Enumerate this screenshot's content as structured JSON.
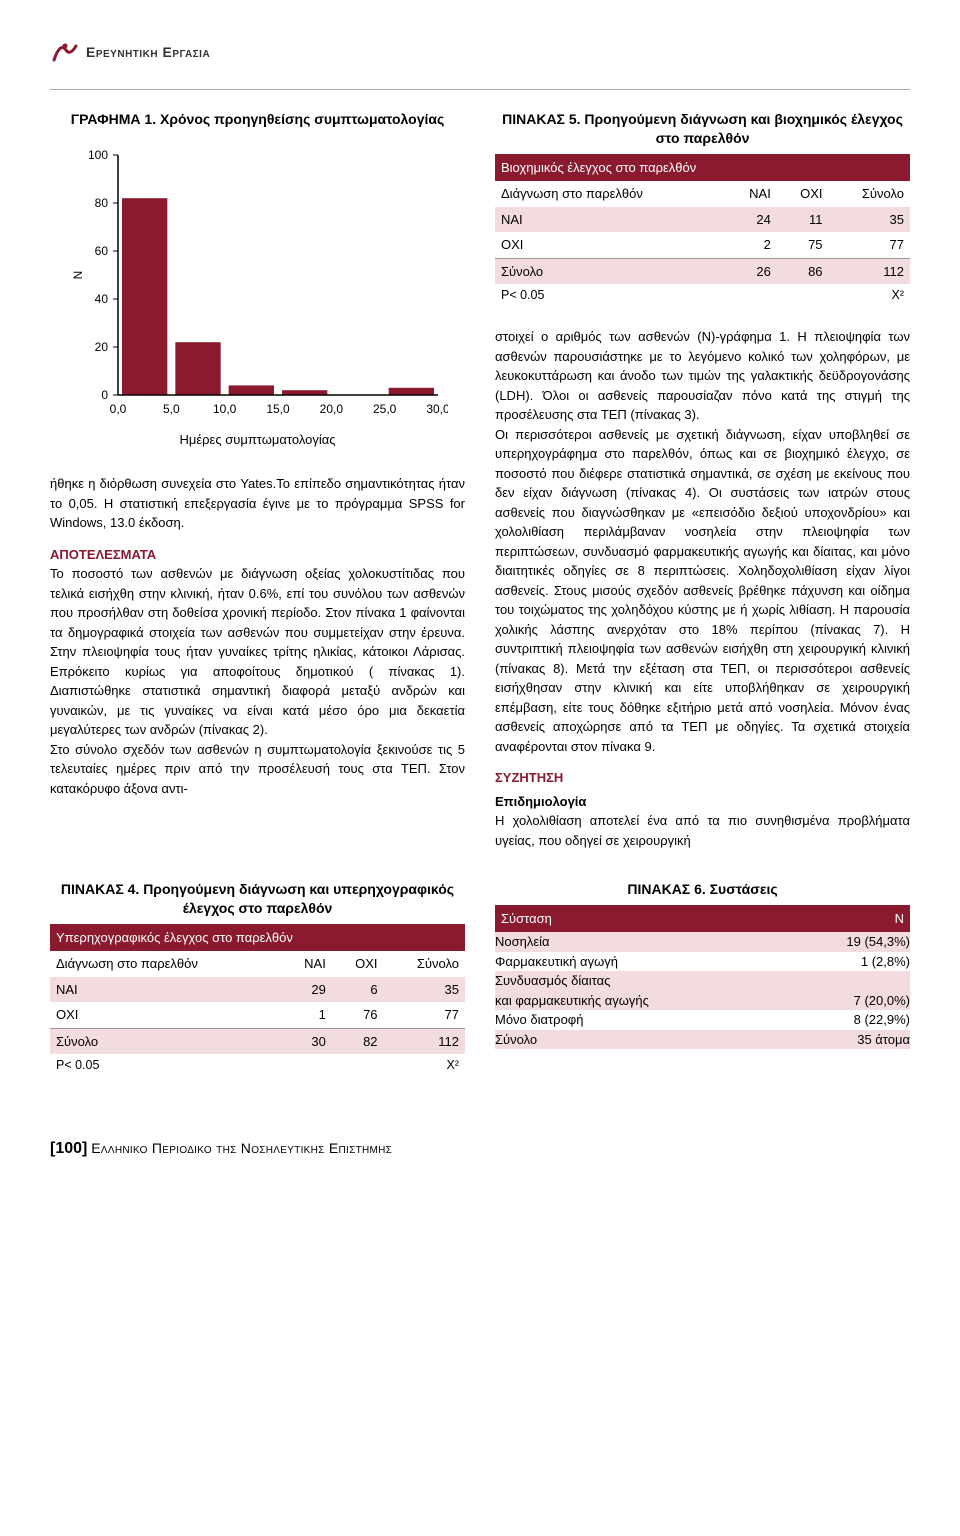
{
  "header": {
    "section_label": "Ερευνητικη Εργασια",
    "logo_color": "#8b1a2f"
  },
  "chart": {
    "title": "ΓΡΑΦΗΜΑ 1. Χρόνος προηγηθείσης συμπτωματολογίας",
    "type": "bar",
    "x_ticks": [
      "0,0",
      "5,0",
      "10,0",
      "15,0",
      "20,0",
      "25,0",
      "30,0"
    ],
    "y_ticks": [
      0,
      20,
      40,
      60,
      80,
      100
    ],
    "values": [
      82,
      22,
      4,
      2,
      0,
      3
    ],
    "bar_color": "#8b1a2f",
    "axis_color": "#000000",
    "background": "#ffffff",
    "ylim": [
      0,
      100
    ],
    "ylabel": "N",
    "xlabel": "Ημέρες συμπτωματολογίας",
    "bar_width": 0.85,
    "font_size": 12
  },
  "left_text": {
    "p1": "ήθηκε η διόρθωση συνεχεία στο Yates.Το επίπεδο σημαντικότητας ήταν το 0,05. Η στατιστική επεξεργασία έγινε με το πρόγραμμα SPSS for Windows, 13.0 έκδοση.",
    "h1": "ΑΠΟΤΕΛΕΣΜΑΤΑ",
    "p2": "Το ποσοστό των ασθενών με διάγνωση οξείας χολοκυστίτιδας που τελικά εισήχθη στην κλινική, ήταν 0.6%, επί του συνόλου των ασθενών που προσήλθαν στη δοθείσα χρονική περίοδο. Στον πίνακα 1 φαίνονται τα δημογραφικά στοιχεία των ασθενών που συμμετείχαν στην έρευνα. Στην πλειοψηφία τους ήταν γυναίκες τρίτης ηλικίας, κάτοικοι Λάρισας. Επρόκειτο κυρίως για αποφοίτους δημοτικού ( πίνακας 1). Διαπιστώθηκε στατιστικά σημαντική διαφορά μεταξύ ανδρών και γυναικών, με τις γυναίκες να είναι κατά μέσο όρο μια δεκαετία μεγαλύτερες των ανδρών (πίνακας 2).",
    "p3": "Στο σύνολο σχεδόν των ασθενών η συμπτωματολογία ξεκινούσε τις 5 τελευταίες ημέρες πριν από την προσέλευσή τους στα ΤΕΠ. Στον κατακόρυφο άξονα αντι-"
  },
  "table5": {
    "title": "ΠΙΝΑΚΑΣ 5. Προηγούμενη διάγνωση και βιοχημικός έλεγχος στο παρελθόν",
    "header": "Βιοχημικός έλεγχος στο παρελθόν",
    "cols": [
      "Διάγνωση στο παρελθόν",
      "ΝΑΙ",
      "ΟΧΙ",
      "Σύνολο"
    ],
    "rows": [
      [
        "ΝΑΙ",
        "24",
        "11",
        "35"
      ],
      [
        "ΟΧΙ",
        "2",
        "75",
        "77"
      ]
    ],
    "sum": [
      "Σύνολο",
      "26",
      "86",
      "112"
    ],
    "pnote": "P< 0.05",
    "chi": "X²",
    "row_light_bg": "#f3dce0",
    "header_bg": "#8b1a2f"
  },
  "right_text": {
    "p1": "στοιχεί ο αριθμός των ασθενών (Ν)-γράφημα 1. Η πλειοψηφία των ασθενών παρουσιάστηκε με το λεγόμενο κολικό των χοληφόρων, με λευκοκυττάρωση και άνοδο των τιμών της γαλακτικής δεϋδρογονάσης (LDH). Όλοι οι ασθενείς παρουσίαζαν πόνο κατά της στιγμή της προσέλευσης στα ΤΕΠ (πίνακας 3).",
    "p2": "Οι περισσότεροι ασθενείς με σχετική διάγνωση, είχαν υποβληθεί σε υπερηχογράφημα στο παρελθόν, όπως και σε βιοχημικό έλεγχο, σε ποσοστό που διέφερε στατιστικά σημαντικά, σε σχέση με εκείνους που δεν είχαν διάγνωση (πίνακας 4). Οι συστάσεις των ιατρών στους ασθενείς που διαγνώσθηκαν με «επεισόδιο δεξιού υποχονδρίου» και χολολιθίαση περιλάμβαναν νοσηλεία στην πλειοψηφία των περιπτώσεων, συνδυασμό φαρμακευτικής αγωγής και δίαιτας, και μόνο διαιτητικές οδηγίες σε 8 περιπτώσεις. Χοληδοχολιθίαση είχαν λίγοι ασθενείς. Στους μισούς σχεδόν ασθενείς βρέθηκε πάχυνση και οίδημα του τοιχώματος της χοληδόχου κύστης με ή χωρίς λιθίαση. Η παρουσία χολικής λάσπης ανερχόταν στο 18% περίπου (πίνακας 7). Η συντριπτική πλειοψηφία των ασθενών εισήχθη στη χειρουργική κλινική (πίνακας 8). Μετά την εξέταση στα ΤΕΠ, οι περισσότεροι ασθενείς εισήχθησαν στην κλινική και είτε υποβλήθηκαν σε χειρουργική επέμβαση, είτε τους δόθηκε εξιτήριο μετά από νοσηλεία. Μόνον ένας ασθενείς αποχώρησε από τα ΤΕΠ με οδηγίες. Τα σχετικά στοιχεία αναφέρονται στον πίνακα 9.",
    "h1": "ΣΥΖΗΤΗΣΗ",
    "h2": "Επιδημιολογία",
    "p3": "Η χολολιθίαση αποτελεί ένα από τα πιο συνηθισμένα προβλήματα υγείας, που οδηγεί σε χειρουργική"
  },
  "table4": {
    "title": "ΠΙΝΑΚΑΣ 4. Προηγούμενη διάγνωση και υπερηχογραφικός έλεγχος στο παρελθόν",
    "header": "Υπερηχογραφικός έλεγχος στο παρελθόν",
    "cols": [
      "Διάγνωση στο παρελθόν",
      "ΝΑΙ",
      "ΟΧΙ",
      "Σύνολο"
    ],
    "rows": [
      [
        "ΝΑΙ",
        "29",
        "6",
        "35"
      ],
      [
        "ΟΧΙ",
        "1",
        "76",
        "77"
      ]
    ],
    "sum": [
      "Σύνολο",
      "30",
      "82",
      "112"
    ],
    "pnote": "P< 0.05",
    "chi": "X²"
  },
  "table6": {
    "title": "ΠΙΝΑΚΑΣ 6. Συστάσεις",
    "header_cols": [
      "Σύσταση",
      "Ν"
    ],
    "rows": [
      {
        "l": "Νοσηλεία",
        "r": "19 (54,3%)",
        "bg": "light"
      },
      {
        "l": "Φαρμακευτική αγωγή",
        "r": "1 (2,8%)",
        "bg": "plain"
      },
      {
        "l": "Συνδυασμός δίαιτας",
        "r": "",
        "bg": "light"
      },
      {
        "l": "και φαρμακευτικής αγωγής",
        "r": "7 (20,0%)",
        "bg": "light"
      },
      {
        "l": "Μόνο διατροφή",
        "r": "8 (22,9%)",
        "bg": "plain"
      },
      {
        "l": "Σύνολο",
        "r": "35 άτομα",
        "bg": "light"
      }
    ]
  },
  "footer": {
    "page": "[100]",
    "journal": "Ελληνικο Περιοδικο της Νοσηλευτικης Επιστημης"
  }
}
